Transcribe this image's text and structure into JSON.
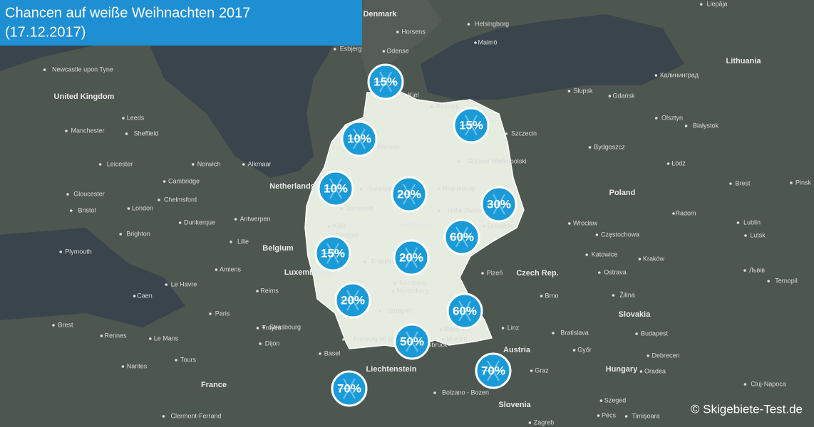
{
  "header": {
    "title": "Chancen auf weiße Weihnachten 2017",
    "subtitle": "(17.12.2017)"
  },
  "badges": [
    {
      "value": 15,
      "label": "15%"
    },
    {
      "value": 15,
      "label": "15%"
    },
    {
      "value": 10,
      "label": "10%"
    },
    {
      "value": 10,
      "label": "10%"
    },
    {
      "value": 20,
      "label": "20%"
    },
    {
      "value": 30,
      "label": "30%"
    },
    {
      "value": 60,
      "label": "60%"
    },
    {
      "value": 15,
      "label": "15%"
    },
    {
      "value": 20,
      "label": "20%"
    },
    {
      "value": 20,
      "label": "20%"
    },
    {
      "value": 60,
      "label": "60%"
    },
    {
      "value": 50,
      "label": "50%"
    },
    {
      "value": 70,
      "label": "70%"
    },
    {
      "value": 70,
      "label": "70%"
    }
  ],
  "countries": [
    "Denmark",
    "United Kingdom",
    "Netherlands",
    "Belgium",
    "Luxembourg",
    "Germany",
    "Poland",
    "Czech Rep.",
    "Slovakia",
    "Austria",
    "Hungary",
    "Slovenia",
    "France",
    "Liechtenstein",
    "Lithuania"
  ],
  "cities": [
    "Horsens",
    "Odense",
    "Esbjerg",
    "Helsingborg",
    "Malmö",
    "Liepāja",
    "Newcastle upon Tyne",
    "Leeds",
    "Manchester",
    "Sheffield",
    "Leicester",
    "Norwich",
    "Cambridge",
    "Gloucester",
    "Chelmsford",
    "Bristol",
    "London",
    "Brighton",
    "Plymouth",
    "Alkmaar",
    "Antwerpen",
    "Dunkerque",
    "Lille",
    "Amiens",
    "Le Havre",
    "Caen",
    "Reims",
    "Paris",
    "Brest",
    "Rennes",
    "Le Mans",
    "Tours",
    "Nantes",
    "Troyes",
    "Dijon",
    "Clermont-Ferrand",
    "Strasbourg",
    "Basel",
    "Kiel",
    "Rostock",
    "Bremen",
    "Bielefeld",
    "Dortmund",
    "Köln",
    "Cologne",
    "Magdeburg",
    "Halle (Saale)",
    "Dresden",
    "Frankfurt",
    "Nürnberg",
    "Nuremberg",
    "Stuttgart",
    "Freiburg im Breisgau",
    "München",
    "Munich",
    "Innsbruck",
    "Bolzano - Bozen",
    "Szczecin",
    "Gorzów Wielkopolski",
    "Bydgoszcz",
    "Słupsk",
    "Gdańsk",
    "Калининград",
    "Olsztyn",
    "Białystok",
    "Łódź",
    "Radom",
    "Wrocław",
    "Częstochowa",
    "Katowice",
    "Kraków",
    "Ostrava",
    "Plzeň",
    "Brno",
    "Žilina",
    "Bratislava",
    "Győr",
    "Budapest",
    "Debrecen",
    "Oradea",
    "Cluj-Napoca",
    "Graz",
    "Szeged",
    "Pécs",
    "Timișoara",
    "Zagreb",
    "Linz",
    "Lublin",
    "Brest",
    "Pinsk",
    "Lutsk",
    "Львів",
    "Ternopil"
  ],
  "copyright": "© Skigebiete-Test.de"
}
